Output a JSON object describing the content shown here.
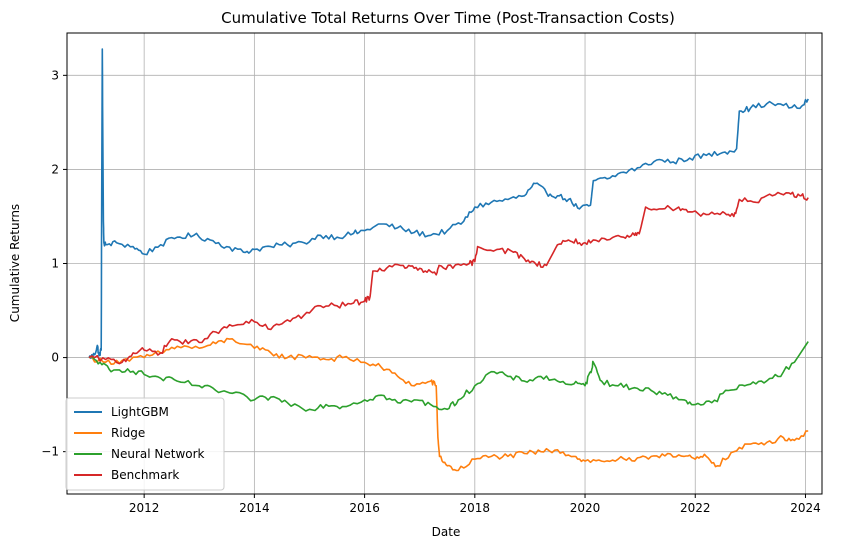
{
  "chart_data": {
    "type": "line",
    "title": "Cumulative Total Returns Over Time (Post-Transaction Costs)",
    "xlabel": "Date",
    "ylabel": "Cumulative Returns",
    "xlim": [
      2010.6,
      2024.3
    ],
    "ylim": [
      -1.45,
      3.45
    ],
    "x_ticks": [
      2012,
      2014,
      2016,
      2018,
      2020,
      2022,
      2024
    ],
    "y_ticks": [
      -1,
      0,
      1,
      2,
      3
    ],
    "grid": true,
    "legend_position": "lower-left",
    "series": [
      {
        "name": "LightGBM",
        "color": "#1f77b4",
        "x": [
          2011.0,
          2011.1,
          2011.15,
          2011.18,
          2011.22,
          2011.24,
          2011.26,
          2011.27,
          2011.3,
          2011.5,
          2011.8,
          2012.0,
          2012.3,
          2012.6,
          2012.9,
          2013.2,
          2013.5,
          2013.8,
          2014.0,
          2014.3,
          2014.6,
          2014.9,
          2015.2,
          2015.5,
          2015.8,
          2016.0,
          2016.3,
          2016.6,
          2016.9,
          2017.2,
          2017.5,
          2017.8,
          2018.0,
          2018.3,
          2018.6,
          2018.9,
          2019.1,
          2019.3,
          2019.5,
          2019.7,
          2019.9,
          2020.1,
          2020.15,
          2020.4,
          2020.7,
          2021.0,
          2021.3,
          2021.6,
          2021.9,
          2022.2,
          2022.5,
          2022.75,
          2022.8,
          2023.0,
          2023.3,
          2023.6,
          2023.9,
          2024.05
        ],
        "values": [
          0.0,
          0.03,
          0.13,
          0.02,
          0.08,
          3.28,
          1.45,
          1.22,
          1.2,
          1.22,
          1.18,
          1.1,
          1.2,
          1.28,
          1.3,
          1.25,
          1.18,
          1.12,
          1.15,
          1.18,
          1.2,
          1.22,
          1.3,
          1.28,
          1.32,
          1.35,
          1.42,
          1.38,
          1.33,
          1.3,
          1.35,
          1.45,
          1.6,
          1.65,
          1.68,
          1.72,
          1.85,
          1.75,
          1.72,
          1.68,
          1.58,
          1.62,
          1.88,
          1.9,
          1.97,
          2.02,
          2.1,
          2.08,
          2.12,
          2.15,
          2.18,
          2.22,
          2.62,
          2.65,
          2.7,
          2.68,
          2.65,
          2.75
        ]
      },
      {
        "name": "Ridge",
        "color": "#ff7f0e",
        "x": [
          2011.0,
          2011.3,
          2011.6,
          2012.0,
          2012.3,
          2012.6,
          2013.0,
          2013.3,
          2013.6,
          2014.0,
          2014.3,
          2014.6,
          2015.0,
          2015.3,
          2015.6,
          2016.0,
          2016.3,
          2016.6,
          2016.9,
          2017.2,
          2017.3,
          2017.33,
          2017.36,
          2017.5,
          2017.7,
          2018.0,
          2018.3,
          2018.6,
          2018.9,
          2019.2,
          2019.5,
          2019.8,
          2020.0,
          2020.3,
          2020.6,
          2020.9,
          2021.2,
          2021.5,
          2021.8,
          2022.0,
          2022.2,
          2022.4,
          2022.7,
          2023.0,
          2023.3,
          2023.6,
          2023.8,
          2024.05
        ],
        "values": [
          0.0,
          -0.05,
          -0.03,
          0.0,
          0.05,
          0.12,
          0.1,
          0.15,
          0.2,
          0.1,
          0.05,
          0.0,
          0.02,
          -0.02,
          0.0,
          -0.05,
          -0.1,
          -0.2,
          -0.3,
          -0.25,
          -0.3,
          -0.85,
          -1.05,
          -1.15,
          -1.2,
          -1.08,
          -1.05,
          -1.05,
          -1.02,
          -1.0,
          -0.98,
          -1.05,
          -1.1,
          -1.1,
          -1.08,
          -1.1,
          -1.05,
          -1.02,
          -1.05,
          -1.08,
          -1.05,
          -1.15,
          -1.0,
          -0.92,
          -0.9,
          -0.85,
          -0.88,
          -0.78
        ]
      },
      {
        "name": "Neural Network",
        "color": "#2ca02c",
        "x": [
          2011.0,
          2011.2,
          2011.4,
          2011.7,
          2012.0,
          2012.3,
          2012.6,
          2013.0,
          2013.3,
          2013.6,
          2014.0,
          2014.3,
          2014.6,
          2015.0,
          2015.3,
          2015.6,
          2016.0,
          2016.3,
          2016.6,
          2016.9,
          2017.2,
          2017.5,
          2017.7,
          2018.0,
          2018.3,
          2018.6,
          2018.9,
          2019.2,
          2019.5,
          2019.8,
          2020.0,
          2020.1,
          2020.15,
          2020.3,
          2020.6,
          2020.9,
          2021.2,
          2021.5,
          2021.8,
          2022.0,
          2022.3,
          2022.6,
          2022.9,
          2023.2,
          2023.5,
          2023.8,
          2024.05
        ],
        "values": [
          0.0,
          -0.05,
          -0.15,
          -0.12,
          -0.18,
          -0.22,
          -0.25,
          -0.3,
          -0.35,
          -0.38,
          -0.45,
          -0.42,
          -0.48,
          -0.55,
          -0.5,
          -0.52,
          -0.45,
          -0.4,
          -0.48,
          -0.45,
          -0.5,
          -0.55,
          -0.45,
          -0.3,
          -0.15,
          -0.2,
          -0.25,
          -0.2,
          -0.25,
          -0.28,
          -0.3,
          -0.15,
          -0.05,
          -0.25,
          -0.3,
          -0.32,
          -0.35,
          -0.4,
          -0.45,
          -0.5,
          -0.48,
          -0.35,
          -0.3,
          -0.25,
          -0.2,
          -0.05,
          0.17
        ]
      },
      {
        "name": "Benchmark",
        "color": "#d62728",
        "x": [
          2011.0,
          2011.3,
          2011.6,
          2011.8,
          2012.0,
          2012.3,
          2012.5,
          2012.8,
          2013.1,
          2013.4,
          2013.7,
          2014.0,
          2014.3,
          2014.6,
          2014.9,
          2015.2,
          2015.5,
          2015.8,
          2016.0,
          2016.1,
          2016.15,
          2016.4,
          2016.7,
          2016.9,
          2017.1,
          2017.3,
          2017.35,
          2017.6,
          2017.9,
          2018.0,
          2018.05,
          2018.4,
          2018.7,
          2018.9,
          2019.1,
          2019.3,
          2019.5,
          2019.7,
          2019.9,
          2020.1,
          2020.4,
          2020.7,
          2020.9,
          2021.0,
          2021.1,
          2021.4,
          2021.7,
          2021.9,
          2022.2,
          2022.5,
          2022.7,
          2022.8,
          2023.1,
          2023.4,
          2023.7,
          2023.9,
          2024.05
        ],
        "values": [
          0.0,
          -0.02,
          -0.05,
          0.05,
          0.08,
          0.05,
          0.2,
          0.15,
          0.2,
          0.3,
          0.35,
          0.38,
          0.3,
          0.4,
          0.45,
          0.55,
          0.55,
          0.58,
          0.6,
          0.65,
          0.92,
          0.95,
          0.98,
          0.95,
          0.92,
          0.88,
          0.98,
          0.95,
          1.0,
          1.02,
          1.18,
          1.15,
          1.12,
          1.05,
          1.0,
          0.98,
          1.2,
          1.25,
          1.22,
          1.22,
          1.25,
          1.28,
          1.3,
          1.35,
          1.6,
          1.58,
          1.6,
          1.55,
          1.52,
          1.55,
          1.5,
          1.68,
          1.65,
          1.72,
          1.75,
          1.72,
          1.7
        ]
      }
    ]
  }
}
